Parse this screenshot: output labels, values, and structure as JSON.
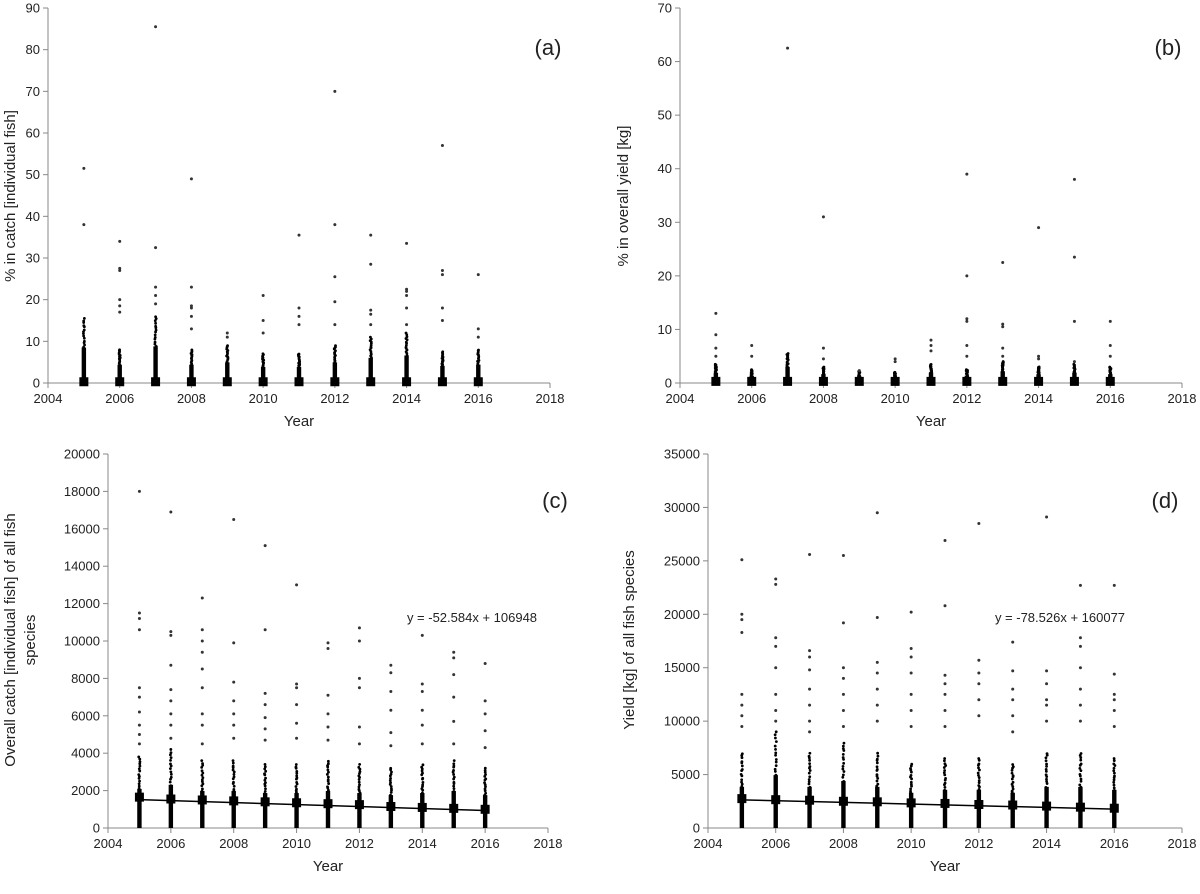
{
  "chart_data": [
    {
      "type": "scatter",
      "panel_label": "(a)",
      "xlabel": "Year",
      "ylabel": "% in catch [individual fish]",
      "xlim": [
        2004,
        2018
      ],
      "ylim": [
        0,
        90
      ],
      "xticks": [
        2004,
        2006,
        2008,
        2010,
        2012,
        2014,
        2016,
        2018
      ],
      "yticks": [
        0,
        10,
        20,
        30,
        40,
        50,
        60,
        70,
        80,
        90
      ],
      "dense_top": [
        15.5,
        8,
        16,
        8,
        9,
        7,
        7,
        9,
        11,
        12,
        7.5,
        8
      ],
      "outliers": [
        {
          "x": 2005,
          "y": [
            51.5,
            38
          ]
        },
        {
          "x": 2006,
          "y": [
            34,
            27.5,
            27,
            20,
            18.5,
            17
          ]
        },
        {
          "x": 2007,
          "y": [
            85.5,
            32.5,
            23,
            21,
            19
          ]
        },
        {
          "x": 2008,
          "y": [
            49,
            23,
            18.5,
            18,
            16,
            13
          ]
        },
        {
          "x": 2009,
          "y": [
            12,
            11
          ]
        },
        {
          "x": 2010,
          "y": [
            21,
            15,
            12
          ]
        },
        {
          "x": 2011,
          "y": [
            35.5,
            18,
            16,
            14
          ]
        },
        {
          "x": 2012,
          "y": [
            70,
            38,
            25.5,
            19.5,
            14
          ]
        },
        {
          "x": 2013,
          "y": [
            35.5,
            28.5,
            17.5,
            16.5,
            14
          ]
        },
        {
          "x": 2014,
          "y": [
            33.5,
            22.5,
            22,
            21,
            18,
            14
          ]
        },
        {
          "x": 2015,
          "y": [
            57,
            27,
            26,
            18,
            15
          ]
        },
        {
          "x": 2016,
          "y": [
            26,
            13,
            11
          ]
        }
      ],
      "means": [
        {
          "x": 2005,
          "y": 0.3
        },
        {
          "x": 2006,
          "y": 0.3
        },
        {
          "x": 2007,
          "y": 0.3
        },
        {
          "x": 2008,
          "y": 0.3
        },
        {
          "x": 2009,
          "y": 0.3
        },
        {
          "x": 2010,
          "y": 0.3
        },
        {
          "x": 2011,
          "y": 0.3
        },
        {
          "x": 2012,
          "y": 0.3
        },
        {
          "x": 2013,
          "y": 0.3
        },
        {
          "x": 2014,
          "y": 0.3
        },
        {
          "x": 2015,
          "y": 0.3
        },
        {
          "x": 2016,
          "y": 0.3
        }
      ],
      "trendline": null,
      "equation": ""
    },
    {
      "type": "scatter",
      "panel_label": "(b)",
      "xlabel": "Year",
      "ylabel": "% in overall yield [kg]",
      "xlim": [
        2004,
        2018
      ],
      "ylim": [
        0,
        70
      ],
      "xticks": [
        2004,
        2006,
        2008,
        2010,
        2012,
        2014,
        2016,
        2018
      ],
      "yticks": [
        0,
        10,
        20,
        30,
        40,
        50,
        60,
        70
      ],
      "dense_top": [
        3.5,
        2.5,
        5.5,
        3,
        2.2,
        2,
        3.5,
        2.5,
        4,
        3,
        3.5,
        3
      ],
      "outliers": [
        {
          "x": 2005,
          "y": [
            13,
            9,
            6.5,
            5
          ]
        },
        {
          "x": 2006,
          "y": [
            7,
            5
          ]
        },
        {
          "x": 2007,
          "y": [
            62.5
          ]
        },
        {
          "x": 2008,
          "y": [
            31,
            6.5,
            4.5
          ]
        },
        {
          "x": 2009,
          "y": [
            2.3
          ]
        },
        {
          "x": 2010,
          "y": [
            4.5,
            4
          ]
        },
        {
          "x": 2011,
          "y": [
            8,
            7,
            6
          ]
        },
        {
          "x": 2012,
          "y": [
            39,
            20,
            12,
            11.5,
            7,
            5
          ]
        },
        {
          "x": 2013,
          "y": [
            22.5,
            11,
            10.5,
            6.5,
            5
          ]
        },
        {
          "x": 2014,
          "y": [
            29,
            5,
            4.5
          ]
        },
        {
          "x": 2015,
          "y": [
            38,
            23.5,
            11.5,
            4
          ]
        },
        {
          "x": 2016,
          "y": [
            11.5,
            7,
            5
          ]
        }
      ],
      "means": [
        {
          "x": 2005,
          "y": 0.3
        },
        {
          "x": 2006,
          "y": 0.3
        },
        {
          "x": 2007,
          "y": 0.3
        },
        {
          "x": 2008,
          "y": 0.3
        },
        {
          "x": 2009,
          "y": 0.3
        },
        {
          "x": 2010,
          "y": 0.3
        },
        {
          "x": 2011,
          "y": 0.3
        },
        {
          "x": 2012,
          "y": 0.3
        },
        {
          "x": 2013,
          "y": 0.3
        },
        {
          "x": 2014,
          "y": 0.3
        },
        {
          "x": 2015,
          "y": 0.3
        },
        {
          "x": 2016,
          "y": 0.3
        }
      ],
      "trendline": null,
      "equation": ""
    },
    {
      "type": "scatter",
      "panel_label": "(c)",
      "xlabel": "Year",
      "ylabel": "Overall catch [individual fish] of all fish species",
      "xlim": [
        2004,
        2018
      ],
      "ylim": [
        0,
        20000
      ],
      "xticks": [
        2004,
        2006,
        2008,
        2010,
        2012,
        2014,
        2016,
        2018
      ],
      "yticks": [
        0,
        2000,
        4000,
        6000,
        8000,
        10000,
        12000,
        14000,
        16000,
        18000,
        20000
      ],
      "dense_top": [
        3800,
        4200,
        3600,
        3600,
        3400,
        3400,
        3600,
        3400,
        3200,
        3400,
        3600,
        3200
      ],
      "outliers": [
        {
          "x": 2005,
          "y": [
            18000,
            11500,
            11200,
            10600,
            7500,
            7000,
            6200,
            5500,
            5000,
            4500
          ]
        },
        {
          "x": 2006,
          "y": [
            16900,
            10500,
            10300,
            8700,
            7400,
            6800,
            6100,
            5500,
            4800
          ]
        },
        {
          "x": 2007,
          "y": [
            12300,
            10600,
            10000,
            9400,
            8500,
            7500,
            6100,
            5500,
            4500
          ]
        },
        {
          "x": 2008,
          "y": [
            16500,
            9900,
            7800,
            6800,
            6100,
            5500,
            4800
          ]
        },
        {
          "x": 2009,
          "y": [
            15100,
            10600,
            7200,
            6600,
            5900,
            5300,
            4700
          ]
        },
        {
          "x": 2010,
          "y": [
            13000,
            7700,
            7500,
            6600,
            5600,
            4800
          ]
        },
        {
          "x": 2011,
          "y": [
            9900,
            9600,
            7100,
            6100,
            5400,
            4700
          ]
        },
        {
          "x": 2012,
          "y": [
            10700,
            10000,
            8000,
            7500,
            5400,
            4500
          ]
        },
        {
          "x": 2013,
          "y": [
            8700,
            8300,
            7300,
            6300,
            5100,
            4400
          ]
        },
        {
          "x": 2014,
          "y": [
            10300,
            7700,
            7300,
            6300,
            5500,
            4500
          ]
        },
        {
          "x": 2015,
          "y": [
            9400,
            9100,
            8200,
            7000,
            5700,
            4500
          ]
        },
        {
          "x": 2016,
          "y": [
            8800,
            6800,
            6100,
            5200,
            4300
          ]
        }
      ],
      "means": [
        {
          "x": 2005,
          "y": 1650
        },
        {
          "x": 2006,
          "y": 1550
        },
        {
          "x": 2007,
          "y": 1500
        },
        {
          "x": 2008,
          "y": 1450
        },
        {
          "x": 2009,
          "y": 1400
        },
        {
          "x": 2010,
          "y": 1350
        },
        {
          "x": 2011,
          "y": 1300
        },
        {
          "x": 2012,
          "y": 1250
        },
        {
          "x": 2013,
          "y": 1150
        },
        {
          "x": 2014,
          "y": 1100
        },
        {
          "x": 2015,
          "y": 1050
        },
        {
          "x": 2016,
          "y": 1000
        }
      ],
      "trendline": {
        "slope": -52.584,
        "intercept": 106948,
        "x_from": 2005,
        "x_to": 2016
      },
      "equation": "y = -52.584x + 106948"
    },
    {
      "type": "scatter",
      "panel_label": "(d)",
      "xlabel": "Year",
      "ylabel": "Yield [kg] of all fish species",
      "xlim": [
        2004,
        2018
      ],
      "ylim": [
        0,
        35000
      ],
      "xticks": [
        2004,
        2006,
        2008,
        2010,
        2012,
        2014,
        2016,
        2018
      ],
      "yticks": [
        0,
        5000,
        10000,
        15000,
        20000,
        25000,
        30000,
        35000
      ],
      "dense_top": [
        7000,
        9000,
        7000,
        8000,
        7000,
        6000,
        6500,
        6500,
        6000,
        7000,
        7000,
        6500
      ],
      "outliers": [
        {
          "x": 2005,
          "y": [
            25100,
            20000,
            19500,
            18300,
            12500,
            11500,
            10500,
            9500
          ]
        },
        {
          "x": 2006,
          "y": [
            23300,
            22800,
            17800,
            17000,
            15000,
            12500,
            11000,
            10000
          ]
        },
        {
          "x": 2007,
          "y": [
            25600,
            16600,
            16000,
            14800,
            13000,
            11500,
            10000,
            9000
          ]
        },
        {
          "x": 2008,
          "y": [
            25500,
            19200,
            15000,
            14000,
            12500,
            11000,
            9500
          ]
        },
        {
          "x": 2009,
          "y": [
            29500,
            19700,
            15500,
            14500,
            13000,
            11500,
            10000
          ]
        },
        {
          "x": 2010,
          "y": [
            20200,
            16800,
            16000,
            14500,
            12500,
            11000,
            9500
          ]
        },
        {
          "x": 2011,
          "y": [
            26900,
            20800,
            14300,
            13500,
            12500,
            11000,
            9500
          ]
        },
        {
          "x": 2012,
          "y": [
            28500,
            15700,
            14500,
            13500,
            12000,
            10500
          ]
        },
        {
          "x": 2013,
          "y": [
            17400,
            14700,
            13000,
            12000,
            10500,
            9000
          ]
        },
        {
          "x": 2014,
          "y": [
            29100,
            14700,
            13500,
            12000,
            11500,
            10000
          ]
        },
        {
          "x": 2015,
          "y": [
            22700,
            17800,
            17000,
            15000,
            13000,
            11500,
            10000
          ]
        },
        {
          "x": 2016,
          "y": [
            22700,
            14400,
            12500,
            12000,
            11000,
            9500
          ]
        }
      ],
      "means": [
        {
          "x": 2005,
          "y": 2750
        },
        {
          "x": 2006,
          "y": 2650
        },
        {
          "x": 2007,
          "y": 2600
        },
        {
          "x": 2008,
          "y": 2500
        },
        {
          "x": 2009,
          "y": 2450
        },
        {
          "x": 2010,
          "y": 2350
        },
        {
          "x": 2011,
          "y": 2300
        },
        {
          "x": 2012,
          "y": 2200
        },
        {
          "x": 2013,
          "y": 2150
        },
        {
          "x": 2014,
          "y": 2050
        },
        {
          "x": 2015,
          "y": 1950
        },
        {
          "x": 2016,
          "y": 1850
        }
      ],
      "trendline": {
        "slope": -78.526,
        "intercept": 160077,
        "x_from": 2005,
        "x_to": 2016
      },
      "equation": "y = -78.526x + 160077"
    }
  ]
}
